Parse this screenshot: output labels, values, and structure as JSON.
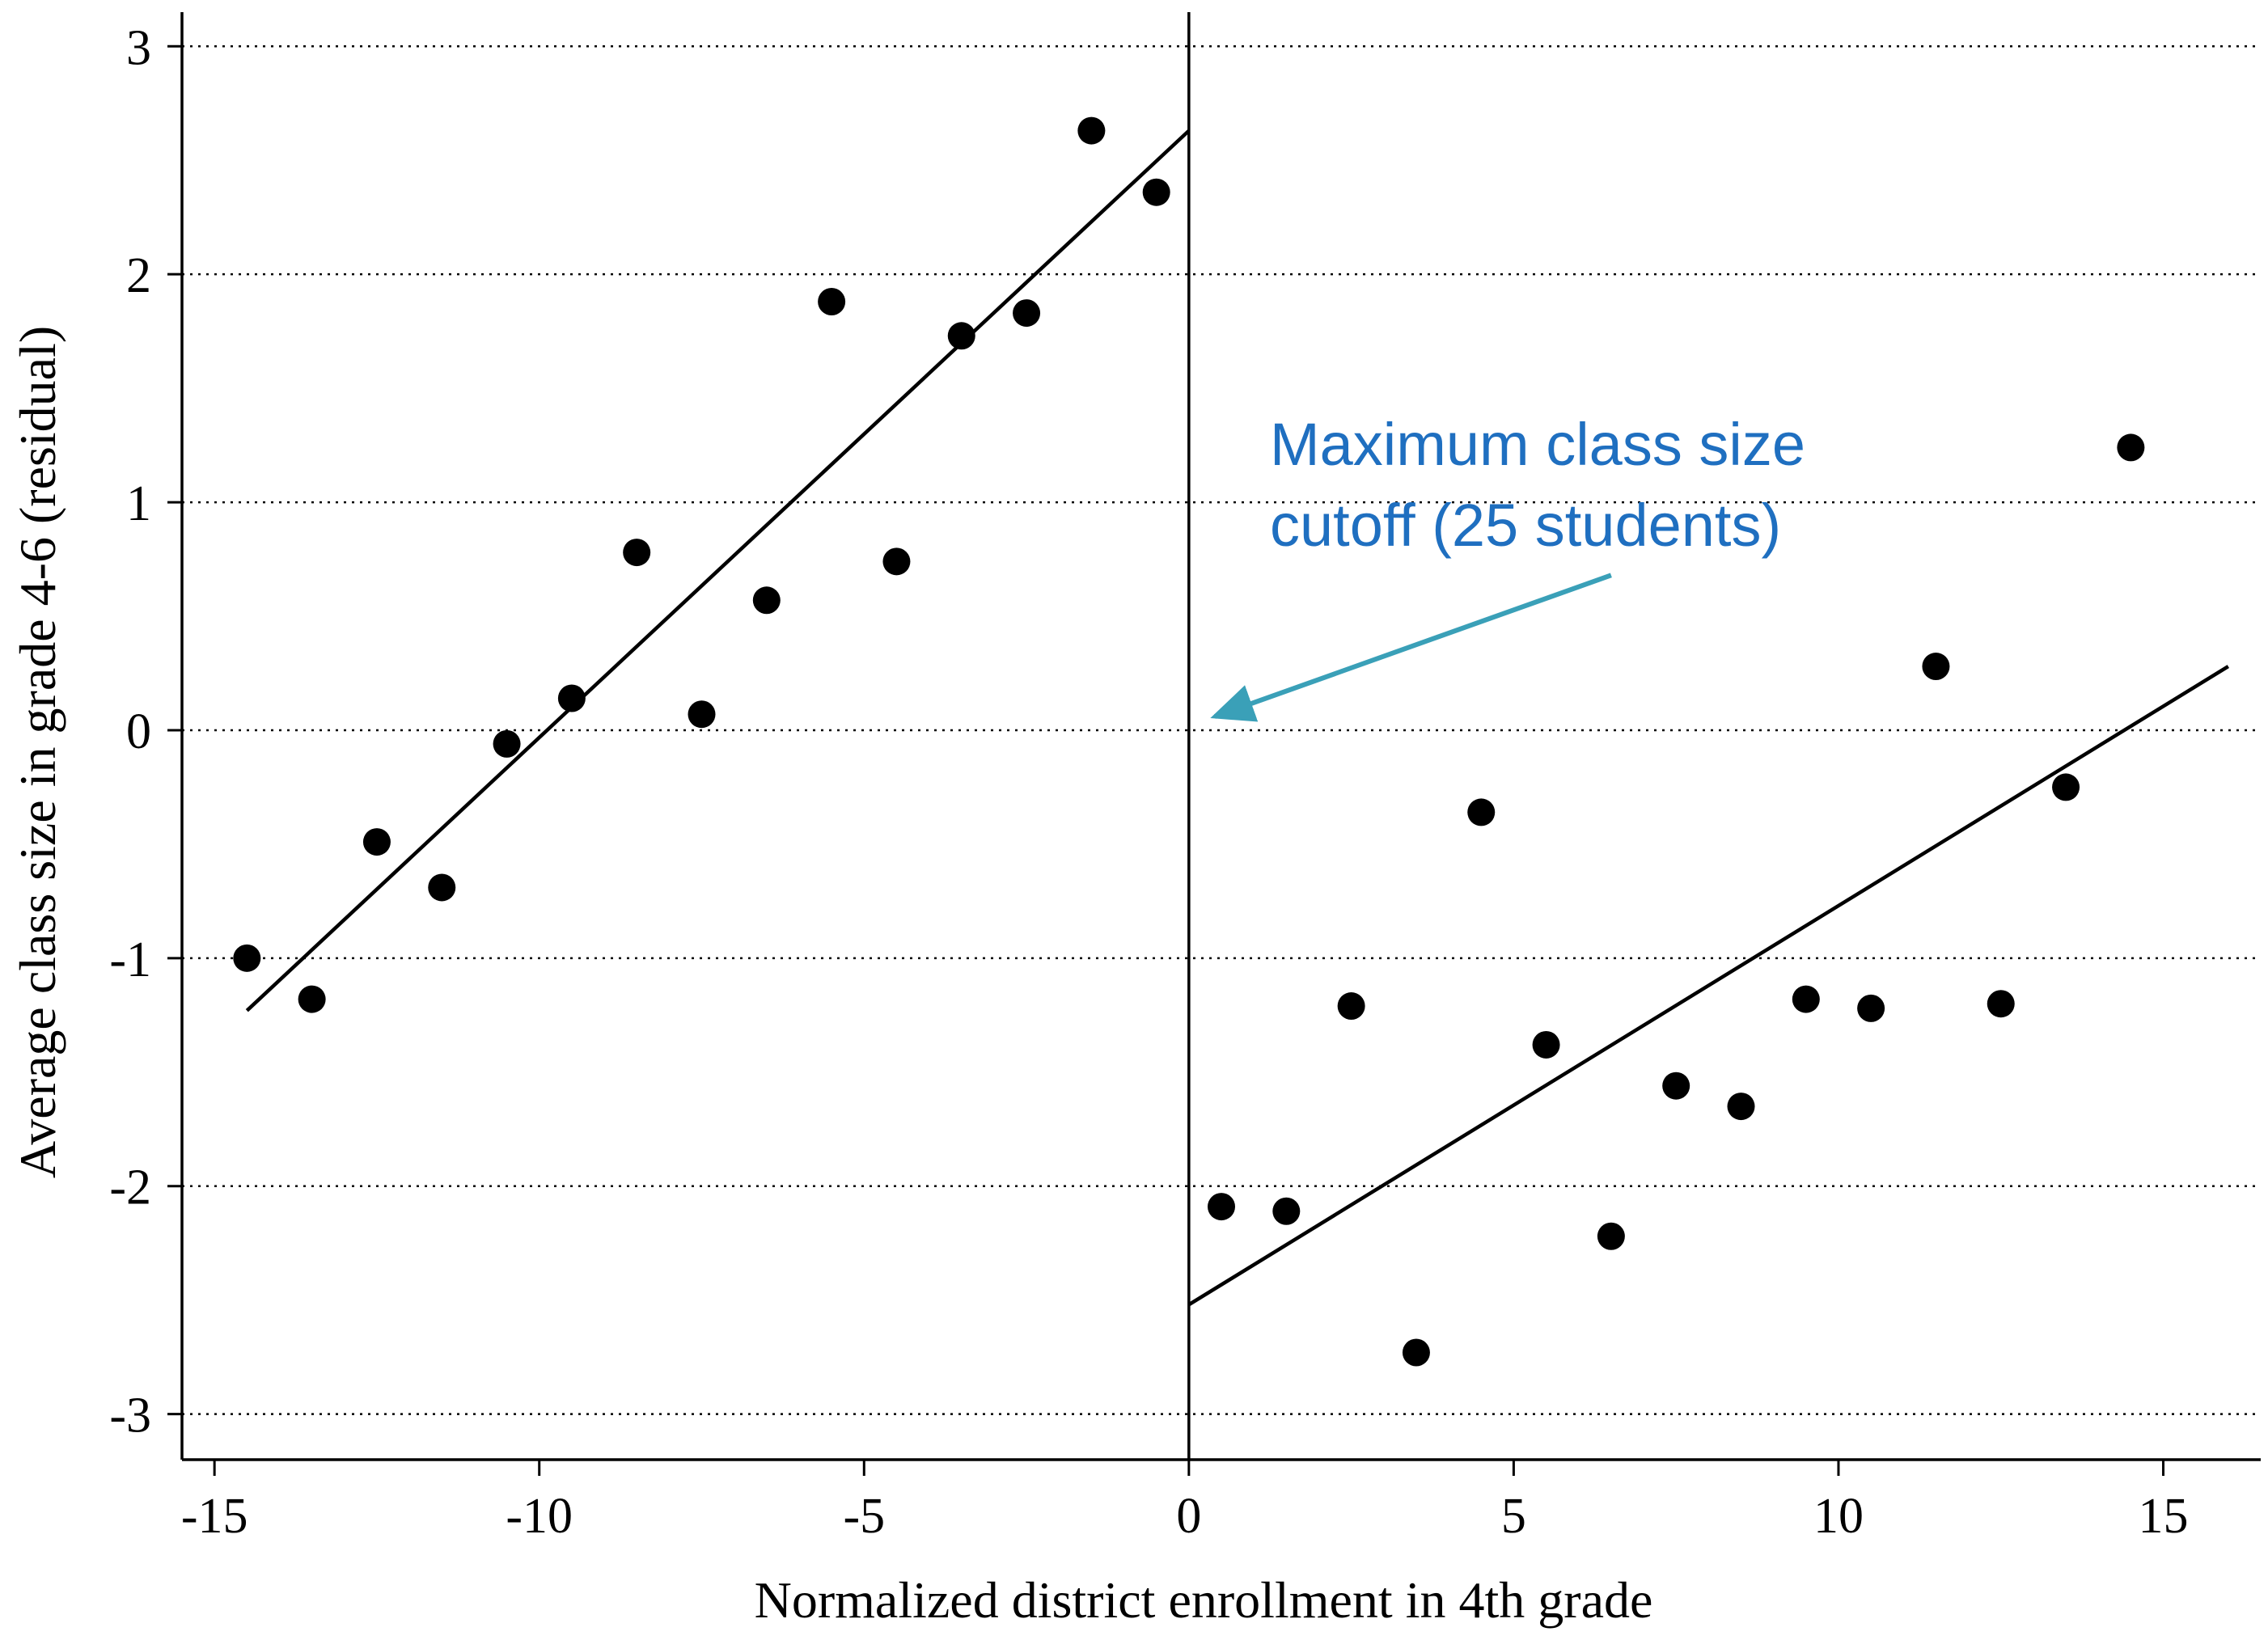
{
  "chart_data": {
    "type": "scatter",
    "xlabel": "Normalized district enrollment in 4th grade",
    "ylabel": "Average class size in grade 4-6 (residual)",
    "xlim": [
      -15.5,
      16.5
    ],
    "ylim": [
      -3.2,
      3.15
    ],
    "xticks": [
      -15,
      -10,
      -5,
      0,
      5,
      10,
      15
    ],
    "yticks": [
      -3,
      -2,
      -1,
      0,
      1,
      2,
      3
    ],
    "xtick_labels": [
      "-15",
      "-10",
      "-5",
      "0",
      "5",
      "10",
      "15"
    ],
    "ytick_labels": [
      "-3",
      "-2",
      "-1",
      "0",
      "1",
      "2",
      "3"
    ],
    "grid": "horizontal-dotted",
    "cutoff_x": 0,
    "series": [
      {
        "side": "left",
        "points": [
          {
            "x": -14.5,
            "y": -1.0
          },
          {
            "x": -13.5,
            "y": -1.18
          },
          {
            "x": -12.5,
            "y": -0.49
          },
          {
            "x": -11.5,
            "y": -0.69
          },
          {
            "x": -10.5,
            "y": -0.06
          },
          {
            "x": -9.5,
            "y": 0.14
          },
          {
            "x": -8.5,
            "y": 0.78
          },
          {
            "x": -7.5,
            "y": 0.07
          },
          {
            "x": -6.5,
            "y": 0.57
          },
          {
            "x": -5.5,
            "y": 1.88
          },
          {
            "x": -4.5,
            "y": 0.74
          },
          {
            "x": -3.5,
            "y": 1.73
          },
          {
            "x": -2.5,
            "y": 1.83
          },
          {
            "x": -1.5,
            "y": 2.63
          },
          {
            "x": -0.5,
            "y": 2.36
          }
        ],
        "fit_line": [
          {
            "x": -14.5,
            "y": -1.23
          },
          {
            "x": 0.0,
            "y": 2.63
          }
        ]
      },
      {
        "side": "right",
        "points": [
          {
            "x": 0.5,
            "y": -2.09
          },
          {
            "x": 1.5,
            "y": -2.11
          },
          {
            "x": 2.5,
            "y": -1.21
          },
          {
            "x": 3.5,
            "y": -2.73
          },
          {
            "x": 4.5,
            "y": -0.36
          },
          {
            "x": 5.5,
            "y": -1.38
          },
          {
            "x": 6.5,
            "y": -2.22
          },
          {
            "x": 7.5,
            "y": -1.56
          },
          {
            "x": 8.5,
            "y": -1.65
          },
          {
            "x": 9.5,
            "y": -1.18
          },
          {
            "x": 10.5,
            "y": -1.22
          },
          {
            "x": 11.5,
            "y": 0.28
          },
          {
            "x": 12.5,
            "y": -1.2
          },
          {
            "x": 13.5,
            "y": -0.25
          },
          {
            "x": 14.5,
            "y": 1.24
          }
        ],
        "fit_line": [
          {
            "x": 0.0,
            "y": -2.52
          },
          {
            "x": 16.0,
            "y": 0.28
          }
        ]
      }
    ],
    "annotation": {
      "lines": [
        "Maximum class size",
        "cutoff (25 students)"
      ],
      "color": "#1f6fc0",
      "arrow_color": "#3aa0b8",
      "arrow_from": {
        "x": 6.5,
        "y": 0.68
      },
      "arrow_to": {
        "x": 0.4,
        "y": 0.06
      }
    }
  }
}
